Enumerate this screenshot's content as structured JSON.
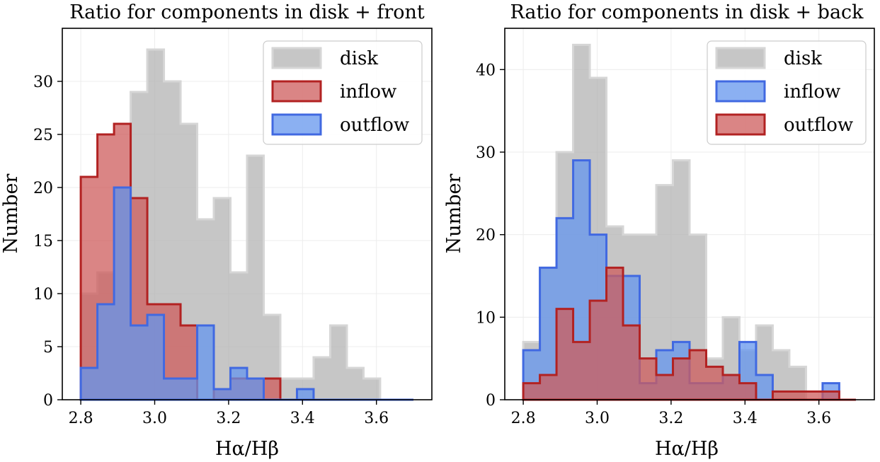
{
  "chart_data": [
    {
      "type": "histogram",
      "title": "Ratio for components in disk + front",
      "xlabel": "Hα/Hβ",
      "ylabel": "Number",
      "xlim": [
        2.75,
        3.75
      ],
      "ylim": [
        0,
        35
      ],
      "xticks": [
        2.8,
        3.0,
        3.2,
        3.4,
        3.6
      ],
      "xtick_labels": [
        "2.8",
        "3.0",
        "3.2",
        "3.4",
        "3.6"
      ],
      "yticks": [
        0,
        5,
        10,
        15,
        20,
        25,
        30
      ],
      "ytick_labels": [
        "0",
        "5",
        "10",
        "15",
        "20",
        "25",
        "30"
      ],
      "grid": true,
      "legend_position": "upper right",
      "bin_edges": [
        2.8,
        2.845,
        2.89,
        2.935,
        2.98,
        3.025,
        3.07,
        3.115,
        3.16,
        3.205,
        3.25,
        3.295,
        3.34,
        3.385,
        3.43,
        3.475,
        3.52,
        3.565,
        3.61,
        3.655,
        3.7
      ],
      "series": [
        {
          "name": "disk",
          "legend_label": "disk",
          "fill": "#b3b3b3",
          "edge": "#d6d6d6",
          "values": [
            10,
            12,
            20,
            29,
            33,
            30,
            26,
            17,
            19,
            12,
            23,
            8,
            2,
            2,
            4,
            7,
            3,
            2,
            0,
            0
          ]
        },
        {
          "name": "inflow",
          "legend_label": "inflow",
          "fill": "#cd5c5c",
          "edge": "#b22222",
          "values": [
            21,
            25,
            26,
            19,
            9,
            9,
            7,
            0,
            1,
            2,
            2,
            2,
            0,
            0,
            0,
            0,
            0,
            0,
            0,
            0
          ]
        },
        {
          "name": "outflow",
          "legend_label": "outflow",
          "fill": "#6495ed",
          "edge": "#4169e1",
          "values": [
            3,
            9,
            20,
            7,
            8,
            2,
            2,
            7,
            1,
            3,
            2,
            0,
            0,
            1,
            0,
            0,
            0,
            0,
            0,
            0
          ]
        }
      ]
    },
    {
      "type": "histogram",
      "title": "Ratio for components in disk + back",
      "xlabel": "Hα/Hβ",
      "ylabel": "Number",
      "xlim": [
        2.75,
        3.75
      ],
      "ylim": [
        0,
        45
      ],
      "xticks": [
        2.8,
        3.0,
        3.2,
        3.4,
        3.6
      ],
      "xtick_labels": [
        "2.8",
        "3.0",
        "3.2",
        "3.4",
        "3.6"
      ],
      "yticks": [
        0,
        10,
        20,
        30,
        40
      ],
      "ytick_labels": [
        "0",
        "10",
        "20",
        "30",
        "40"
      ],
      "grid": true,
      "legend_position": "upper right",
      "bin_edges": [
        2.8,
        2.845,
        2.89,
        2.935,
        2.98,
        3.025,
        3.07,
        3.115,
        3.16,
        3.205,
        3.25,
        3.295,
        3.34,
        3.385,
        3.43,
        3.475,
        3.52,
        3.565,
        3.61,
        3.655,
        3.7
      ],
      "series": [
        {
          "name": "disk",
          "legend_label": "disk",
          "fill": "#b3b3b3",
          "edge": "#d6d6d6",
          "values": [
            7,
            16,
            30,
            43,
            39,
            21,
            20,
            20,
            26,
            29,
            20,
            5,
            10,
            6,
            9,
            6,
            4,
            0,
            0,
            0
          ]
        },
        {
          "name": "inflow",
          "legend_label": "inflow",
          "fill": "#6495ed",
          "edge": "#4169e1",
          "values": [
            6,
            16,
            22,
            29,
            20,
            15,
            15,
            2,
            6,
            7,
            2,
            2,
            3,
            7,
            3,
            0,
            0,
            0,
            2,
            0
          ]
        },
        {
          "name": "outflow",
          "legend_label": "outflow",
          "fill": "#cd5c5c",
          "edge": "#b22222",
          "values": [
            2,
            3,
            11,
            7,
            12,
            16,
            9,
            5,
            3,
            5,
            6,
            4,
            3,
            2,
            0,
            1,
            1,
            1,
            1,
            0
          ]
        }
      ]
    }
  ]
}
